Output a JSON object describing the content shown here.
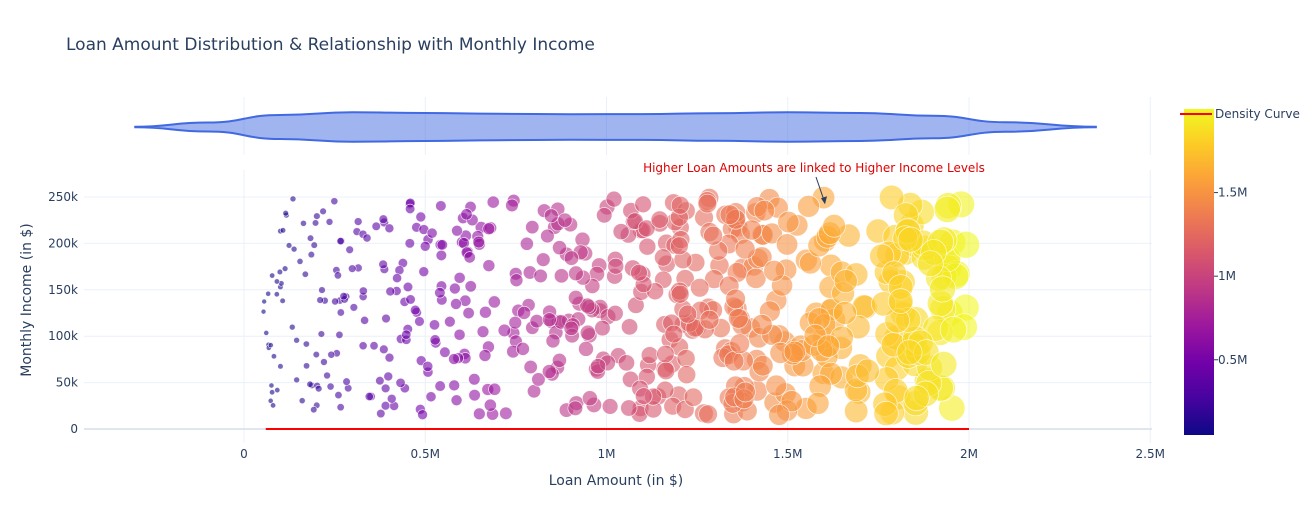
{
  "chart_data": {
    "type": "scatter",
    "title": "Loan Amount Distribution & Relationship with Monthly Income",
    "xlabel": "Loan Amount (in $)",
    "ylabel": "Monthly Income (in $)",
    "xlim": [
      -450000,
      2500000
    ],
    "ylim": [
      -10000,
      270000
    ],
    "x_ticks": [
      {
        "value": 0,
        "label": "0"
      },
      {
        "value": 500000,
        "label": "0.5M"
      },
      {
        "value": 1000000,
        "label": "1M"
      },
      {
        "value": 1500000,
        "label": "1.5M"
      },
      {
        "value": 2000000,
        "label": "2M"
      },
      {
        "value": 2500000,
        "label": "2.5M"
      }
    ],
    "y_ticks": [
      {
        "value": 0,
        "label": "0"
      },
      {
        "value": 50000,
        "label": "50k"
      },
      {
        "value": 100000,
        "label": "100k"
      },
      {
        "value": 150000,
        "label": "150k"
      },
      {
        "value": 200000,
        "label": "200k"
      },
      {
        "value": 250000,
        "label": "250k"
      }
    ],
    "grid": true,
    "colorscale": "Plasma",
    "colorbar": {
      "range": [
        50000,
        2000000
      ],
      "ticks": [
        {
          "value": 500000,
          "label": "0.5M"
        },
        {
          "value": 1000000,
          "label": "1M"
        },
        {
          "value": 1500000,
          "label": "1.5M"
        }
      ]
    },
    "density": {
      "type": "violin",
      "x": [
        -300000,
        -100000,
        100000,
        300000,
        500000,
        700000,
        900000,
        1100000,
        1300000,
        1500000,
        1700000,
        1900000,
        2100000,
        2350000
      ],
      "half_width": [
        0.02,
        0.3,
        0.8,
        0.98,
        0.93,
        0.88,
        0.85,
        0.86,
        0.92,
        0.98,
        0.93,
        0.75,
        0.32,
        0.02
      ],
      "color": "#4169e1"
    },
    "density_curve": {
      "name": "Density Curve",
      "x_range": [
        60000,
        2000000
      ],
      "y_level": 0,
      "color": "#ff0000"
    },
    "annotation": {
      "text": "Higher Loan Amounts are linked to Higher Income Levels",
      "x": 1600000,
      "y": 240000,
      "color": "#ff0000"
    },
    "points": {
      "count": 600,
      "x_range": [
        50000,
        2000000
      ],
      "y_range": [
        15000,
        250000
      ],
      "size_range": [
        3,
        25
      ],
      "opacity": 0.6
    }
  }
}
